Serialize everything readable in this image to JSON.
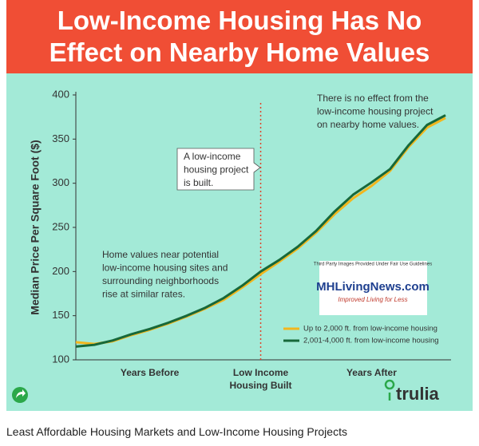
{
  "title": "Low-Income Housing Has No Effect on Nearby Home Values",
  "caption": "Least Affordable Housing Markets and Low-Income Housing Projects",
  "brand": "trulia",
  "watermark": {
    "notice": "Third Party Images Provided Under Fair Use Guidelines",
    "name": "MHLivingNews.com",
    "tagline": "Improved Living for Less"
  },
  "chart_data": {
    "type": "line",
    "ylabel": "Median Price Per Square Foot ($)",
    "x": [
      0,
      1,
      2,
      3,
      4,
      5,
      6,
      7,
      8,
      9,
      10,
      11,
      12,
      13,
      14,
      15,
      16,
      17,
      18,
      19,
      20
    ],
    "xlim": [
      0,
      20.3
    ],
    "xticks": [
      {
        "value": 4,
        "label": "Years Before"
      },
      {
        "value": 10,
        "label": "Low Income Housing Built"
      },
      {
        "value": 16,
        "label": "Years After"
      }
    ],
    "ylim": [
      100,
      400
    ],
    "yticks": [
      100,
      150,
      200,
      250,
      300,
      350,
      400
    ],
    "grid": false,
    "legend": "lower right",
    "series": [
      {
        "name": "Up to 2,000 ft. from low-income housing",
        "color": "#f2b61d",
        "values": [
          120,
          118,
          121,
          128,
          134,
          141,
          149,
          158,
          168,
          182,
          197,
          211,
          226,
          244,
          265,
          283,
          297,
          314,
          341,
          363,
          374
        ]
      },
      {
        "name": "2,001-4,000 ft. from low-income housing",
        "color": "#17683a",
        "values": [
          115,
          117,
          122,
          129,
          135,
          142,
          150,
          159,
          170,
          184,
          200,
          213,
          228,
          246,
          268,
          287,
          301,
          316,
          343,
          366,
          377
        ]
      }
    ],
    "annotations": [
      [
        "There is no effect from the",
        "low-income housing project",
        "on nearby home values."
      ],
      [
        "A low-income",
        "housing project",
        "is built."
      ],
      [
        "Home values near potential",
        "low-income housing sites and",
        "surrounding neighborhoods",
        "rise at similar rates."
      ]
    ]
  }
}
